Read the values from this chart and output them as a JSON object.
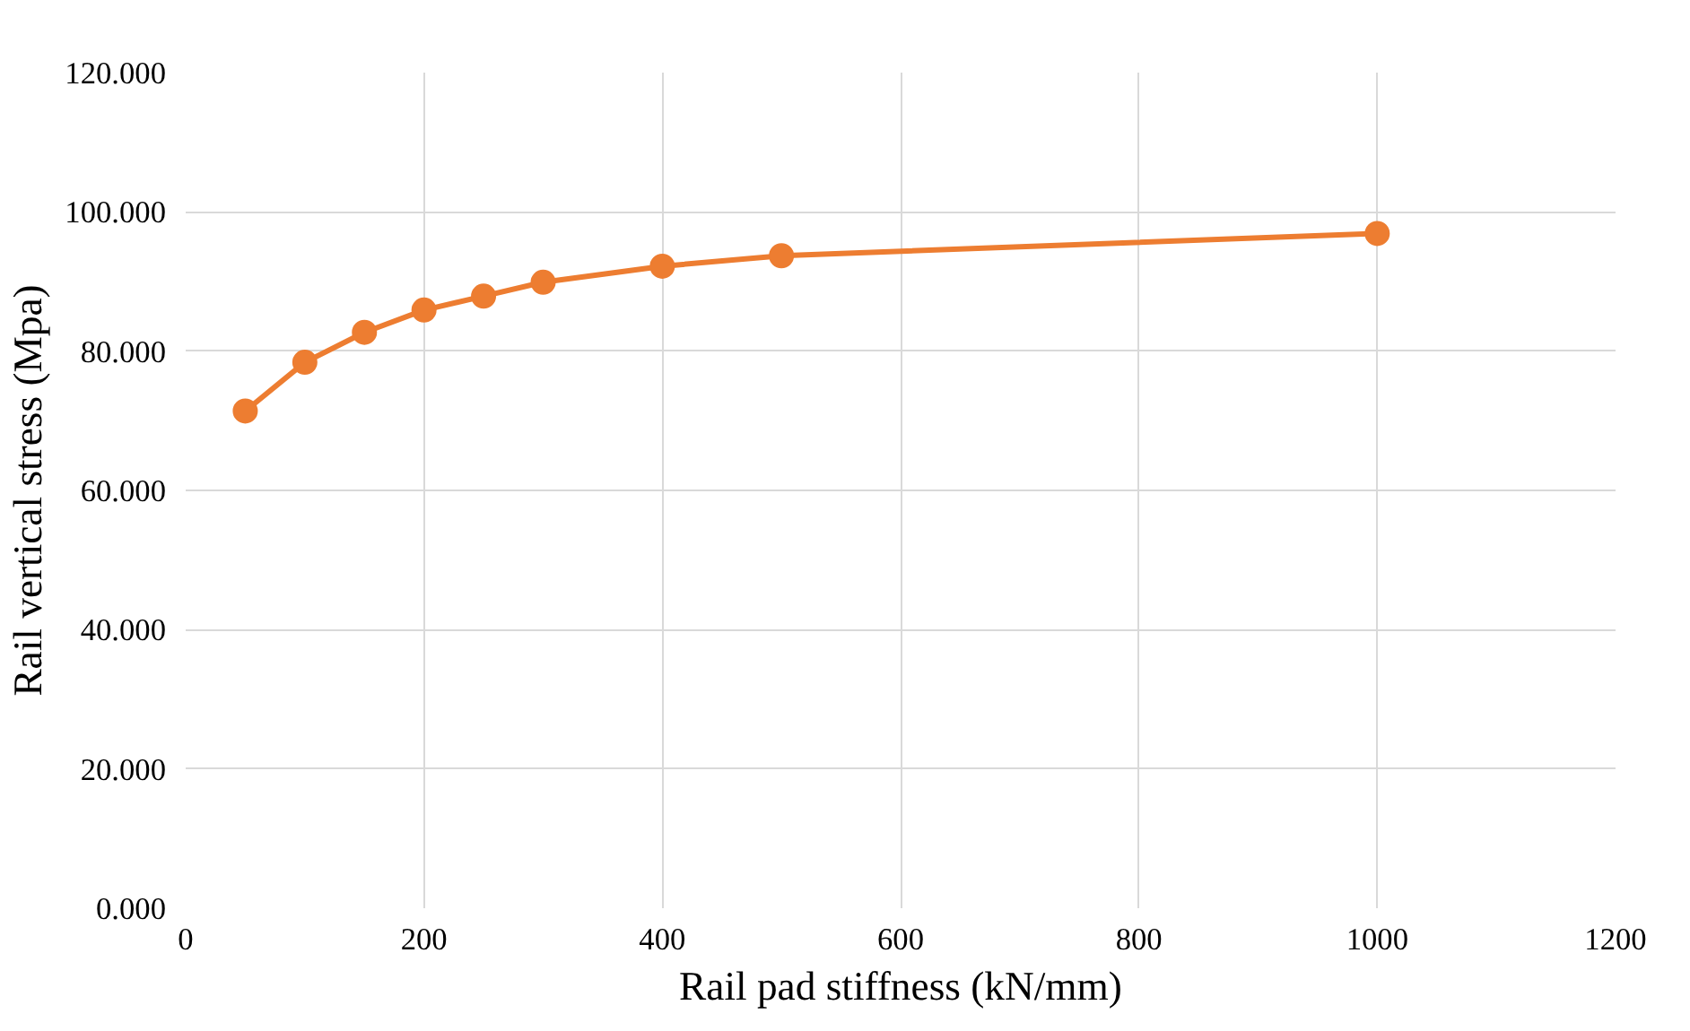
{
  "chart_data": {
    "type": "line",
    "xlabel": "Rail pad stiffness (kN/mm)",
    "ylabel": "Rail vertical stress (Mpa)",
    "x": [
      50,
      100,
      150,
      200,
      250,
      300,
      400,
      500,
      1000
    ],
    "series": [
      {
        "color": "#ed7d31",
        "values": [
          71.4,
          78.4,
          82.7,
          85.9,
          87.9,
          89.9,
          92.2,
          93.7,
          96.9
        ]
      }
    ],
    "xlim": [
      0,
      1200
    ],
    "xticks": [
      0,
      200,
      400,
      600,
      800,
      1000,
      1200
    ],
    "ylim": [
      0,
      120
    ],
    "yticks": [
      {
        "value": 0,
        "label": "0.000"
      },
      {
        "value": 20,
        "label": "20.000"
      },
      {
        "value": 40,
        "label": "40.000"
      },
      {
        "value": 60,
        "label": "60.000"
      },
      {
        "value": 80,
        "label": "80.000"
      },
      {
        "value": 100,
        "label": "100.000"
      },
      {
        "value": 120,
        "label": "120.000"
      }
    ],
    "grid": true,
    "marker": "circle",
    "line_style": "solid"
  }
}
